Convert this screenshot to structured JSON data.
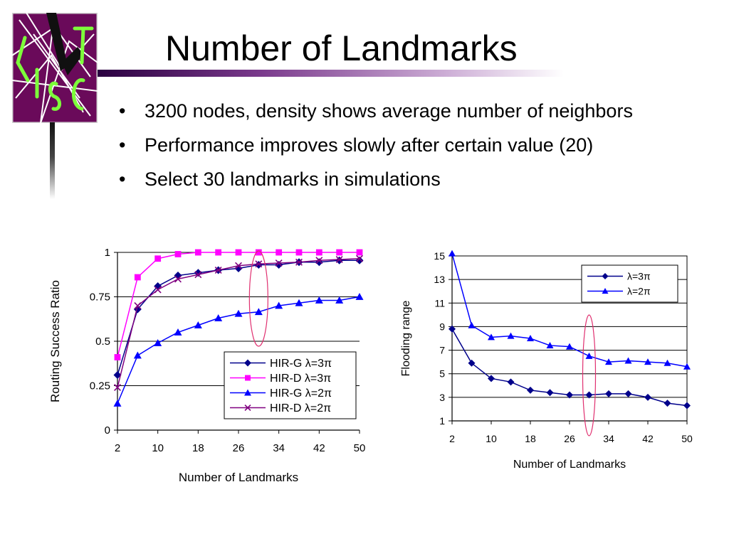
{
  "slide": {
    "title": "Number of Landmarks",
    "bullet_marker": "•",
    "bullets": [
      "3200 nodes, density shows average number of neighbors",
      "Performance improves slowly after certain value (20)",
      "Select 30 landmarks in simulations"
    ]
  },
  "logo": {
    "icon": "cip-logo-icon",
    "bg_color": "#6a0a5a",
    "line_color": "#ffffff",
    "letter_color": "#7dff3a"
  },
  "highlight_color": "#e03070",
  "chart_data": [
    {
      "type": "line",
      "xlabel": "Number of Landmarks",
      "ylabel": "Routing Success Ratio",
      "x": [
        2,
        6,
        10,
        14,
        18,
        22,
        26,
        30,
        34,
        38,
        42,
        46,
        50
      ],
      "xticks": [
        "2",
        "10",
        "18",
        "26",
        "34",
        "42",
        "50"
      ],
      "xlim": [
        2,
        50
      ],
      "yticks": [
        "0",
        "0.25",
        "0.5",
        "0.75",
        "1"
      ],
      "ylim": [
        0,
        1
      ],
      "grid": true,
      "legend_position": "bottom-right",
      "highlight_x": 30,
      "series": [
        {
          "name": "HIR-G λ=3π",
          "color": "#00008b",
          "marker": "diamond",
          "values": [
            0.31,
            0.68,
            0.81,
            0.87,
            0.885,
            0.9,
            0.91,
            0.93,
            0.93,
            0.945,
            0.945,
            0.955,
            0.955
          ]
        },
        {
          "name": "HIR-D λ=3π",
          "color": "#ff00ff",
          "marker": "square",
          "values": [
            0.41,
            0.86,
            0.965,
            0.99,
            1.0,
            1.0,
            1.0,
            1.0,
            1.0,
            1.0,
            1.0,
            1.0,
            1.0
          ]
        },
        {
          "name": "HIR-G λ=2π",
          "color": "#0000ff",
          "marker": "triangle",
          "values": [
            0.15,
            0.42,
            0.49,
            0.55,
            0.59,
            0.63,
            0.655,
            0.665,
            0.7,
            0.715,
            0.73,
            0.73,
            0.75
          ]
        },
        {
          "name": "HIR-D λ=2π",
          "color": "#800080",
          "marker": "x",
          "values": [
            0.24,
            0.7,
            0.79,
            0.85,
            0.875,
            0.9,
            0.925,
            0.935,
            0.94,
            0.945,
            0.955,
            0.96,
            0.965
          ]
        }
      ]
    },
    {
      "type": "line",
      "xlabel": "Number of Landmarks",
      "ylabel": "Flooding range",
      "x": [
        2,
        6,
        10,
        14,
        18,
        22,
        26,
        30,
        34,
        38,
        42,
        46,
        50
      ],
      "xticks": [
        "2",
        "10",
        "18",
        "26",
        "34",
        "42",
        "50"
      ],
      "xlim": [
        2,
        50
      ],
      "yticks": [
        "1",
        "3",
        "5",
        "7",
        "9",
        "11",
        "13",
        "15"
      ],
      "ylim": [
        1,
        15
      ],
      "grid": true,
      "legend_position": "top-right",
      "highlight_x": 30,
      "series": [
        {
          "name": "λ=3π",
          "color": "#00008b",
          "marker": "diamond",
          "values": [
            8.8,
            5.9,
            4.6,
            4.3,
            3.6,
            3.4,
            3.2,
            3.2,
            3.3,
            3.3,
            3.0,
            2.5,
            2.3
          ]
        },
        {
          "name": "λ=2π",
          "color": "#0000ff",
          "marker": "triangle",
          "values": [
            15.2,
            9.1,
            8.1,
            8.2,
            8.0,
            7.4,
            7.3,
            6.5,
            6.0,
            6.1,
            6.0,
            5.9,
            5.6
          ]
        }
      ]
    }
  ]
}
